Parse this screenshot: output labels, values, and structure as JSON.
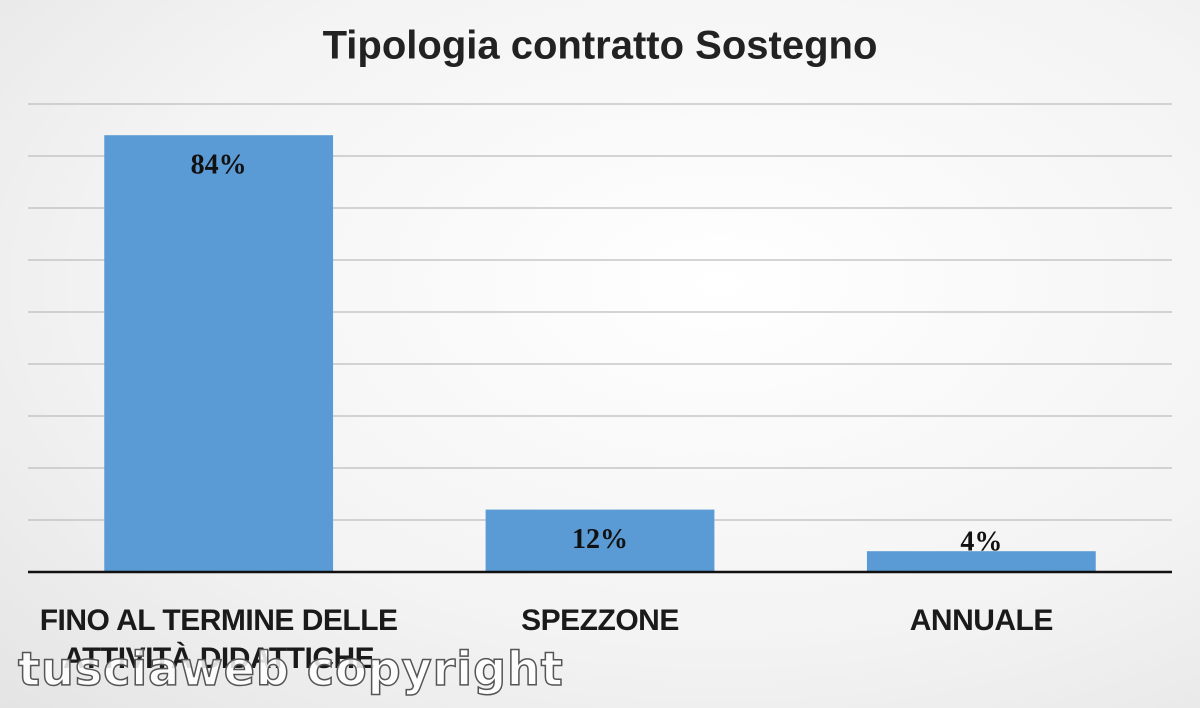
{
  "chart_data": {
    "type": "bar",
    "title": "Tipologia contratto Sostegno",
    "categories": [
      "FINO AL TERMINE DELLE ATTIVITÀ DIDATTICHE",
      "SPEZZONE",
      "ANNUALE"
    ],
    "values": [
      84,
      12,
      4
    ],
    "value_labels": [
      "84%",
      "12%",
      "4%"
    ],
    "color": "#5b9bd5",
    "ylim": [
      0,
      90
    ],
    "yticks": [
      0,
      10,
      20,
      30,
      40,
      50,
      60,
      70,
      80,
      90
    ],
    "grid": true,
    "watermark": "tusciaweb copyright"
  }
}
